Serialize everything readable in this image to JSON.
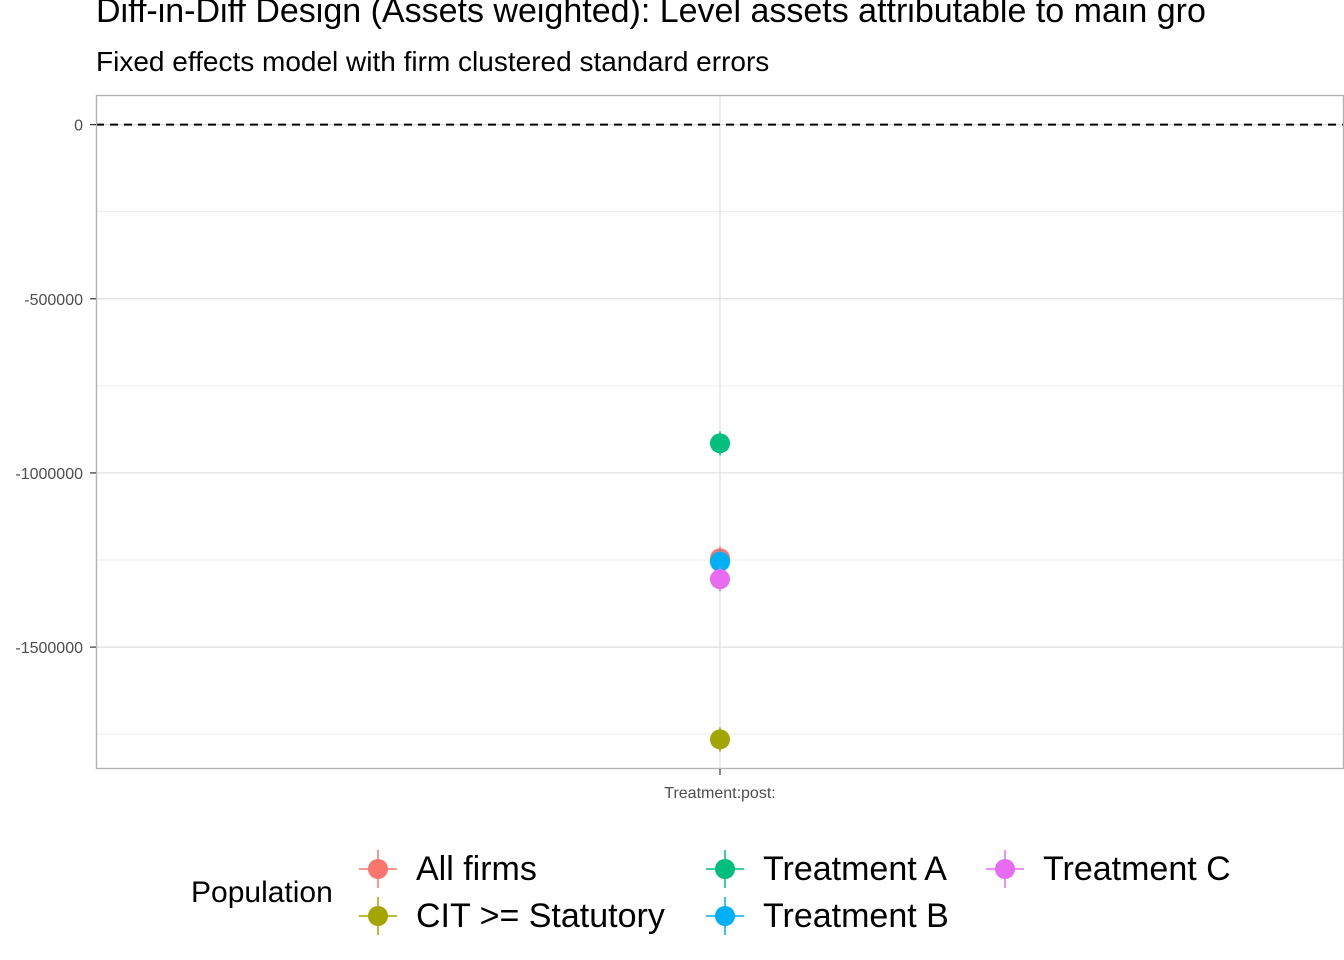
{
  "chart_data": {
    "type": "scatter",
    "title": "Diff-in-Diff Design (Assets weighted): Level assets attributable to main gro",
    "subtitle": "Fixed effects model with firm clustered standard errors",
    "xlabel": "",
    "ylabel": "",
    "categories": [
      "Treatment:post:"
    ],
    "ylim": [
      -1850000,
      85000
    ],
    "yticks": [
      0,
      -500000,
      -1000000,
      -1500000
    ],
    "ytick_labels": [
      "0",
      "-500000",
      "-1000000",
      "-1500000"
    ],
    "reference_line": 0,
    "grid": true,
    "legend": {
      "title": "Population",
      "position": "bottom"
    },
    "series": [
      {
        "name": "All firms",
        "color": "#F8766D",
        "values": [
          -1245000
        ]
      },
      {
        "name": "CIT >= Statutory",
        "color": "#A3A500",
        "values": [
          -1765000
        ]
      },
      {
        "name": "Treatment A",
        "color": "#00BF7D",
        "values": [
          -915000
        ]
      },
      {
        "name": "Treatment B",
        "color": "#00B0F6",
        "values": [
          -1255000
        ]
      },
      {
        "name": "Treatment C",
        "color": "#E76BF3",
        "values": [
          -1305000
        ]
      }
    ]
  }
}
